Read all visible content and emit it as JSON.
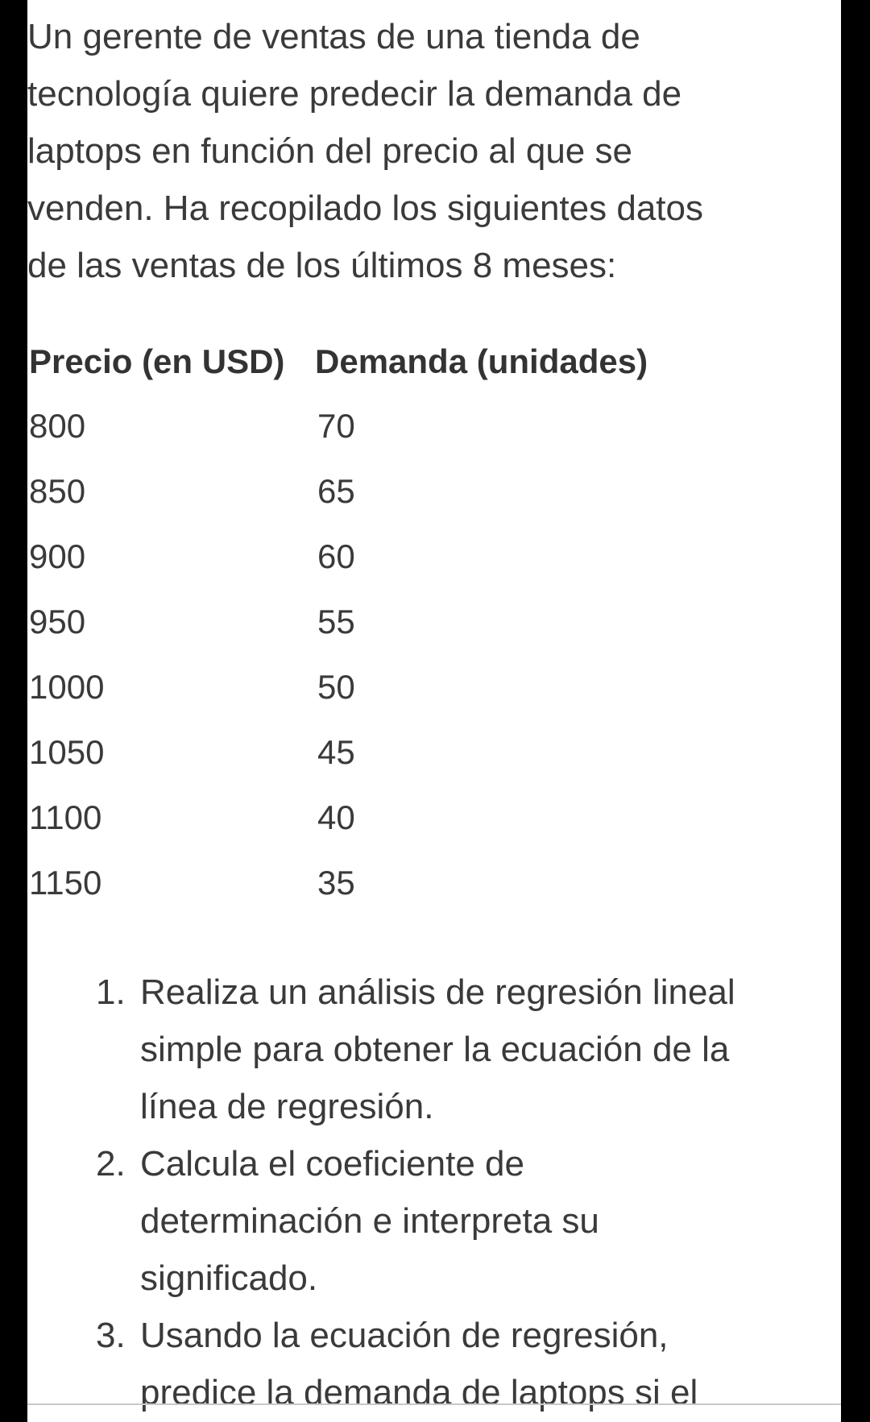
{
  "intro": {
    "lines": [
      "Un gerente de ventas de una tienda de",
      "tecnología quiere predecir la demanda de",
      "laptops en función del precio al que se",
      "venden. Ha recopilado los siguientes datos",
      "de las ventas de los últimos 8 meses:"
    ]
  },
  "table": {
    "headers": [
      "Precio (en USD)",
      "Demanda (unidades)"
    ],
    "rows": [
      [
        "800",
        "70"
      ],
      [
        "850",
        "65"
      ],
      [
        "900",
        "60"
      ],
      [
        "950",
        "55"
      ],
      [
        "1000",
        "50"
      ],
      [
        "1050",
        "45"
      ],
      [
        "1100",
        "40"
      ],
      [
        "1150",
        "35"
      ]
    ]
  },
  "questions": [
    {
      "number": "1.",
      "lines": [
        "Realiza un análisis de regresión lineal",
        "simple para obtener la ecuación de la",
        "línea de regresión."
      ]
    },
    {
      "number": "2.",
      "lines": [
        "Calcula el coeficiente de",
        "determinación e interpreta su",
        "significado."
      ]
    },
    {
      "number": "3.",
      "lines": [
        "Usando la ecuación de regresión,",
        "predice la demanda de laptops si el"
      ]
    }
  ]
}
